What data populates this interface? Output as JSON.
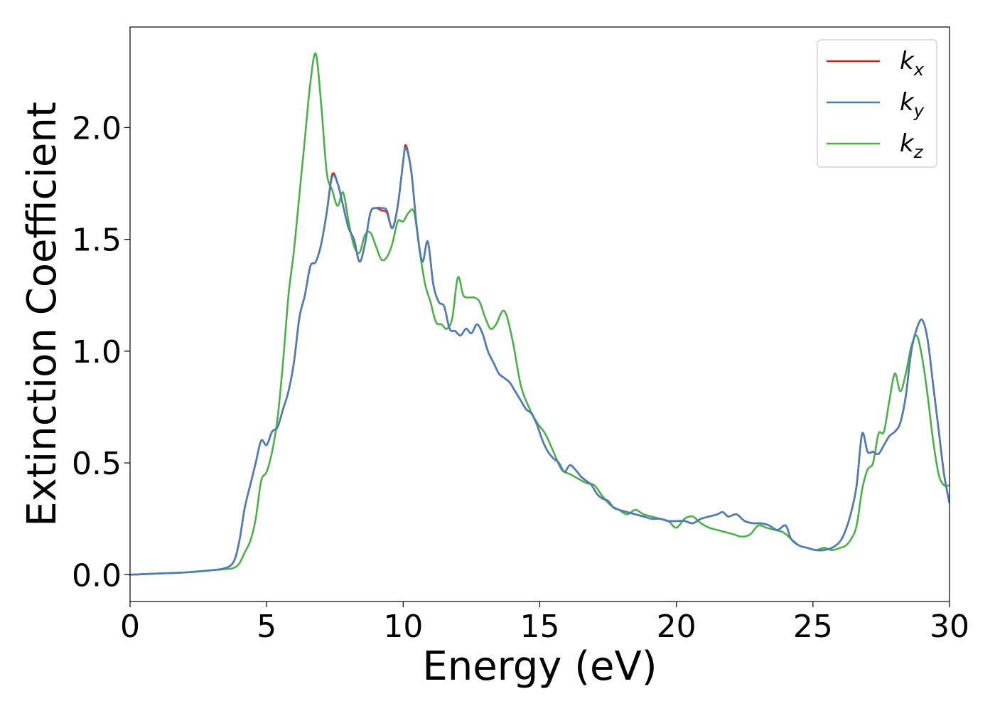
{
  "chart_data": {
    "type": "line",
    "xlabel": "Energy (eV)",
    "ylabel": "Extinction Coefficient",
    "xlim": [
      0,
      30
    ],
    "ylim": [
      -0.12,
      2.45
    ],
    "xticks": [
      0,
      5,
      10,
      15,
      20,
      25,
      30
    ],
    "xtick_labels": [
      "0",
      "5",
      "10",
      "15",
      "20",
      "25",
      "30"
    ],
    "yticks": [
      0.0,
      0.5,
      1.0,
      1.5,
      2.0
    ],
    "ytick_labels": [
      "0.0",
      "0.5",
      "1.0",
      "1.5",
      "2.0"
    ],
    "grid": false,
    "legend_position": "top-right",
    "series": [
      {
        "name": "kx",
        "label_base": "k",
        "label_sub": "x",
        "color": "#e41a1c",
        "x": [
          0,
          1,
          2,
          3,
          3.5,
          3.8,
          4.0,
          4.2,
          4.4,
          4.6,
          4.8,
          5.0,
          5.2,
          5.4,
          5.6,
          5.8,
          6.0,
          6.2,
          6.4,
          6.6,
          6.8,
          7.0,
          7.2,
          7.4,
          7.6,
          7.8,
          8.0,
          8.2,
          8.4,
          8.6,
          8.8,
          9.0,
          9.2,
          9.4,
          9.6,
          9.8,
          10.0,
          10.1,
          10.3,
          10.5,
          10.7,
          10.9,
          11.1,
          11.3,
          11.5,
          11.7,
          11.9,
          12.1,
          12.3,
          12.5,
          12.7,
          12.9,
          13.1,
          13.3,
          13.5,
          13.7,
          13.9,
          14.1,
          14.3,
          14.5,
          14.7,
          14.9,
          15.1,
          15.3,
          15.5,
          15.7,
          15.9,
          16.1,
          16.3,
          16.5,
          16.7,
          16.9,
          17.1,
          17.3,
          17.5,
          17.7,
          17.9,
          18.2,
          18.5,
          18.8,
          19.1,
          19.4,
          19.7,
          20.0,
          20.3,
          20.6,
          20.9,
          21.2,
          21.5,
          21.7,
          21.9,
          22.2,
          22.5,
          22.8,
          23.1,
          23.4,
          23.7,
          24.0,
          24.2,
          24.5,
          24.8,
          25.1,
          25.4,
          25.7,
          26.0,
          26.2,
          26.4,
          26.6,
          26.8,
          27.0,
          27.2,
          27.4,
          27.6,
          27.8,
          28.0,
          28.2,
          28.4,
          28.6,
          28.8,
          29.0,
          29.2,
          29.4,
          29.6,
          29.8,
          30.0
        ],
        "y": [
          0.0,
          0.005,
          0.01,
          0.02,
          0.03,
          0.06,
          0.15,
          0.3,
          0.4,
          0.5,
          0.6,
          0.58,
          0.64,
          0.66,
          0.74,
          0.82,
          0.95,
          1.15,
          1.25,
          1.38,
          1.4,
          1.48,
          1.62,
          1.79,
          1.75,
          1.65,
          1.55,
          1.5,
          1.4,
          1.48,
          1.62,
          1.64,
          1.63,
          1.62,
          1.55,
          1.65,
          1.85,
          1.92,
          1.8,
          1.55,
          1.4,
          1.49,
          1.3,
          1.22,
          1.2,
          1.1,
          1.09,
          1.07,
          1.1,
          1.08,
          1.12,
          1.08,
          1.0,
          0.95,
          0.9,
          0.88,
          0.86,
          0.82,
          0.78,
          0.74,
          0.72,
          0.67,
          0.6,
          0.55,
          0.52,
          0.5,
          0.46,
          0.49,
          0.47,
          0.44,
          0.42,
          0.4,
          0.36,
          0.34,
          0.33,
          0.3,
          0.29,
          0.28,
          0.27,
          0.26,
          0.25,
          0.25,
          0.24,
          0.24,
          0.24,
          0.23,
          0.25,
          0.26,
          0.27,
          0.28,
          0.26,
          0.27,
          0.24,
          0.23,
          0.23,
          0.22,
          0.2,
          0.22,
          0.16,
          0.13,
          0.12,
          0.11,
          0.11,
          0.12,
          0.15,
          0.2,
          0.28,
          0.4,
          0.63,
          0.55,
          0.55,
          0.54,
          0.58,
          0.62,
          0.64,
          0.68,
          0.8,
          1.0,
          1.1,
          1.14,
          1.05,
          0.85,
          0.65,
          0.45,
          0.32
        ]
      },
      {
        "name": "ky",
        "label_base": "k",
        "label_sub": "y",
        "color": "#4a7fb5",
        "x": [
          0,
          1,
          2,
          3,
          3.5,
          3.8,
          4.0,
          4.2,
          4.4,
          4.6,
          4.8,
          5.0,
          5.2,
          5.4,
          5.6,
          5.8,
          6.0,
          6.2,
          6.4,
          6.6,
          6.8,
          7.0,
          7.2,
          7.4,
          7.6,
          7.8,
          8.0,
          8.2,
          8.4,
          8.6,
          8.8,
          9.0,
          9.2,
          9.4,
          9.6,
          9.8,
          10.0,
          10.1,
          10.3,
          10.5,
          10.7,
          10.9,
          11.1,
          11.3,
          11.5,
          11.7,
          11.9,
          12.1,
          12.3,
          12.5,
          12.7,
          12.9,
          13.1,
          13.3,
          13.5,
          13.7,
          13.9,
          14.1,
          14.3,
          14.5,
          14.7,
          14.9,
          15.1,
          15.3,
          15.5,
          15.7,
          15.9,
          16.1,
          16.3,
          16.5,
          16.7,
          16.9,
          17.1,
          17.3,
          17.5,
          17.7,
          17.9,
          18.2,
          18.5,
          18.8,
          19.1,
          19.4,
          19.7,
          20.0,
          20.3,
          20.6,
          20.9,
          21.2,
          21.5,
          21.7,
          21.9,
          22.2,
          22.5,
          22.8,
          23.1,
          23.4,
          23.7,
          24.0,
          24.2,
          24.5,
          24.8,
          25.1,
          25.4,
          25.7,
          26.0,
          26.2,
          26.4,
          26.6,
          26.8,
          27.0,
          27.2,
          27.4,
          27.6,
          27.8,
          28.0,
          28.2,
          28.4,
          28.6,
          28.8,
          29.0,
          29.2,
          29.4,
          29.6,
          29.8,
          30.0
        ],
        "y": [
          0.0,
          0.005,
          0.01,
          0.02,
          0.03,
          0.06,
          0.15,
          0.3,
          0.4,
          0.5,
          0.6,
          0.58,
          0.64,
          0.66,
          0.74,
          0.82,
          0.95,
          1.15,
          1.25,
          1.38,
          1.4,
          1.48,
          1.62,
          1.78,
          1.75,
          1.65,
          1.55,
          1.5,
          1.4,
          1.48,
          1.62,
          1.64,
          1.64,
          1.63,
          1.55,
          1.65,
          1.85,
          1.91,
          1.8,
          1.55,
          1.4,
          1.49,
          1.3,
          1.22,
          1.2,
          1.1,
          1.09,
          1.07,
          1.1,
          1.08,
          1.12,
          1.08,
          1.0,
          0.95,
          0.9,
          0.88,
          0.86,
          0.82,
          0.78,
          0.74,
          0.72,
          0.67,
          0.6,
          0.55,
          0.52,
          0.5,
          0.46,
          0.49,
          0.47,
          0.44,
          0.42,
          0.4,
          0.36,
          0.34,
          0.33,
          0.3,
          0.29,
          0.28,
          0.27,
          0.26,
          0.25,
          0.25,
          0.24,
          0.24,
          0.24,
          0.23,
          0.25,
          0.26,
          0.27,
          0.28,
          0.26,
          0.27,
          0.24,
          0.23,
          0.23,
          0.22,
          0.2,
          0.22,
          0.16,
          0.13,
          0.12,
          0.11,
          0.11,
          0.12,
          0.15,
          0.2,
          0.28,
          0.4,
          0.63,
          0.55,
          0.55,
          0.54,
          0.58,
          0.62,
          0.64,
          0.68,
          0.8,
          1.0,
          1.1,
          1.14,
          1.05,
          0.85,
          0.65,
          0.45,
          0.32
        ]
      },
      {
        "name": "kz",
        "label_base": "k",
        "label_sub": "z",
        "color": "#4daf4a",
        "x": [
          0,
          1,
          2,
          3,
          3.5,
          3.8,
          4.0,
          4.2,
          4.4,
          4.6,
          4.8,
          5.0,
          5.2,
          5.4,
          5.6,
          5.8,
          6.0,
          6.2,
          6.4,
          6.6,
          6.8,
          7.0,
          7.2,
          7.4,
          7.6,
          7.8,
          8.0,
          8.2,
          8.4,
          8.6,
          8.8,
          9.0,
          9.2,
          9.4,
          9.6,
          9.8,
          10.0,
          10.2,
          10.4,
          10.6,
          10.8,
          11.0,
          11.2,
          11.4,
          11.6,
          11.8,
          12.0,
          12.2,
          12.4,
          12.6,
          12.8,
          13.0,
          13.2,
          13.4,
          13.7,
          14.0,
          14.3,
          14.6,
          14.9,
          15.2,
          15.5,
          15.8,
          16.1,
          16.4,
          16.7,
          17.0,
          17.3,
          17.6,
          17.9,
          18.2,
          18.5,
          18.8,
          19.1,
          19.4,
          19.7,
          20.0,
          20.3,
          20.6,
          20.9,
          21.2,
          21.5,
          21.8,
          22.1,
          22.4,
          22.7,
          23.0,
          23.3,
          23.6,
          23.9,
          24.2,
          24.5,
          24.8,
          25.1,
          25.4,
          25.7,
          26.0,
          26.2,
          26.4,
          26.6,
          26.8,
          27.0,
          27.2,
          27.4,
          27.6,
          27.8,
          28.0,
          28.2,
          28.4,
          28.6,
          28.8,
          29.0,
          29.2,
          29.4,
          29.6,
          29.8,
          30.0
        ],
        "y": [
          0.0,
          0.005,
          0.01,
          0.02,
          0.025,
          0.03,
          0.05,
          0.1,
          0.15,
          0.25,
          0.42,
          0.46,
          0.55,
          0.7,
          0.95,
          1.25,
          1.45,
          1.7,
          1.95,
          2.2,
          2.33,
          2.1,
          1.8,
          1.72,
          1.65,
          1.71,
          1.58,
          1.47,
          1.44,
          1.52,
          1.53,
          1.47,
          1.41,
          1.42,
          1.48,
          1.58,
          1.58,
          1.62,
          1.62,
          1.45,
          1.3,
          1.22,
          1.13,
          1.12,
          1.1,
          1.15,
          1.33,
          1.25,
          1.24,
          1.24,
          1.22,
          1.15,
          1.1,
          1.12,
          1.18,
          1.05,
          0.85,
          0.75,
          0.68,
          0.63,
          0.55,
          0.47,
          0.45,
          0.43,
          0.41,
          0.4,
          0.35,
          0.31,
          0.29,
          0.27,
          0.29,
          0.27,
          0.26,
          0.25,
          0.24,
          0.21,
          0.25,
          0.26,
          0.23,
          0.21,
          0.2,
          0.19,
          0.18,
          0.17,
          0.18,
          0.22,
          0.21,
          0.2,
          0.19,
          0.16,
          0.13,
          0.12,
          0.11,
          0.12,
          0.11,
          0.12,
          0.13,
          0.16,
          0.22,
          0.38,
          0.47,
          0.5,
          0.63,
          0.64,
          0.78,
          0.9,
          0.82,
          0.9,
          1.02,
          1.07,
          0.97,
          0.8,
          0.6,
          0.45,
          0.4,
          0.4
        ]
      }
    ]
  }
}
